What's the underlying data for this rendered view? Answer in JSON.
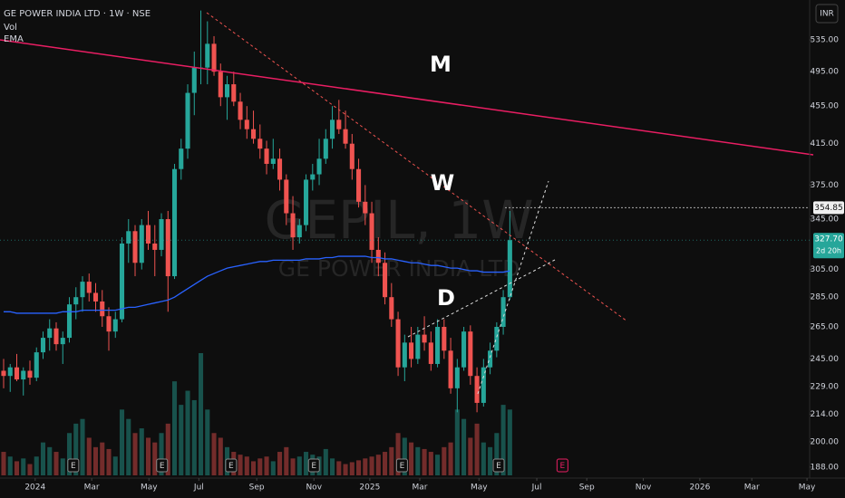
{
  "chart_data": {
    "type": "candlestick",
    "title": "GE POWER INDIA LTD · 1W · NSE",
    "currency": "INR",
    "watermark": "GEPIL, 1W",
    "watermark_subtitle": "GE POWER INDIA LTD",
    "log_scale": true,
    "grid": false,
    "xlim": [
      -0.55,
      122.6
    ],
    "ylim": [
      183,
      590
    ],
    "yticks": [
      {
        "value": 535,
        "label": "535.00"
      },
      {
        "value": 495,
        "label": "495.00"
      },
      {
        "value": 455,
        "label": "455.00"
      },
      {
        "value": 415,
        "label": "415.00"
      },
      {
        "value": 375,
        "label": "375.00"
      },
      {
        "value": 345,
        "label": "345.00"
      },
      {
        "value": 305,
        "label": "305.00"
      },
      {
        "value": 285,
        "label": "285.00"
      },
      {
        "value": 265,
        "label": "265.00"
      },
      {
        "value": 245,
        "label": "245.00"
      },
      {
        "value": 229,
        "label": "229.00"
      },
      {
        "value": 214,
        "label": "214.00"
      },
      {
        "value": 200,
        "label": "200.00"
      },
      {
        "value": 188,
        "label": "188.00"
      }
    ],
    "xticks": [
      {
        "value": 4.8,
        "label": "2024"
      },
      {
        "value": 13.4,
        "label": "Mar"
      },
      {
        "value": 22.1,
        "label": "May"
      },
      {
        "value": 29.7,
        "label": "Jul"
      },
      {
        "value": 38.5,
        "label": "Sep"
      },
      {
        "value": 47.2,
        "label": "Nov"
      },
      {
        "value": 55.7,
        "label": "2025"
      },
      {
        "value": 63.3,
        "label": "Mar"
      },
      {
        "value": 72.3,
        "label": "May"
      },
      {
        "value": 81.1,
        "label": "Jul"
      },
      {
        "value": 88.7,
        "label": "Sep"
      },
      {
        "value": 97.3,
        "label": "Nov"
      },
      {
        "value": 105.9,
        "label": "2026"
      },
      {
        "value": 113.8,
        "label": "Mar"
      },
      {
        "value": 122.2,
        "label": "May"
      }
    ],
    "up_color": "#26a69a",
    "down_color": "#ef5350",
    "open": [
      238,
      235,
      240,
      233,
      238,
      234,
      249,
      258,
      264,
      254,
      258,
      280,
      285,
      296,
      288,
      282,
      272,
      262,
      270,
      325,
      335,
      310,
      340,
      325,
      320,
      345,
      300,
      390,
      410,
      470,
      500,
      500,
      530,
      495,
      465,
      480,
      460,
      440,
      430,
      420,
      410,
      395,
      400,
      380,
      350,
      330,
      340,
      380,
      385,
      400,
      420,
      440,
      430,
      415,
      390,
      360,
      350,
      320,
      310,
      285,
      270,
      240,
      255,
      245,
      260,
      255,
      242,
      265,
      250,
      228,
      240,
      262,
      235,
      220,
      240,
      250,
      265,
      285
    ],
    "high": [
      245,
      242,
      248,
      240,
      244,
      252,
      262,
      270,
      268,
      262,
      285,
      292,
      300,
      302,
      295,
      290,
      278,
      275,
      330,
      345,
      340,
      345,
      352,
      340,
      350,
      352,
      395,
      420,
      480,
      520,
      575,
      560,
      540,
      505,
      490,
      495,
      470,
      455,
      450,
      435,
      418,
      420,
      410,
      385,
      365,
      345,
      385,
      395,
      420,
      430,
      455,
      462,
      450,
      425,
      400,
      375,
      360,
      330,
      318,
      295,
      275,
      260,
      265,
      265,
      272,
      262,
      270,
      270,
      258,
      245,
      265,
      266,
      240,
      245,
      255,
      268,
      290,
      352
    ],
    "low": [
      228,
      226,
      232,
      224,
      230,
      232,
      245,
      250,
      250,
      242,
      255,
      270,
      275,
      282,
      275,
      265,
      250,
      258,
      268,
      310,
      300,
      305,
      320,
      300,
      315,
      275,
      298,
      380,
      400,
      445,
      480,
      480,
      490,
      455,
      440,
      455,
      430,
      420,
      415,
      400,
      385,
      390,
      370,
      340,
      320,
      325,
      335,
      370,
      375,
      395,
      410,
      425,
      410,
      380,
      355,
      340,
      310,
      300,
      280,
      265,
      235,
      232,
      240,
      242,
      250,
      238,
      240,
      245,
      225,
      215,
      238,
      230,
      215,
      218,
      236,
      246,
      260,
      283
    ],
    "close": [
      235,
      240,
      233,
      238,
      234,
      249,
      258,
      264,
      254,
      258,
      280,
      285,
      296,
      288,
      282,
      272,
      262,
      270,
      325,
      335,
      310,
      340,
      325,
      320,
      345,
      300,
      390,
      410,
      470,
      500,
      500,
      530,
      495,
      465,
      480,
      460,
      440,
      430,
      420,
      410,
      395,
      400,
      380,
      350,
      330,
      340,
      380,
      385,
      400,
      420,
      440,
      430,
      415,
      390,
      360,
      350,
      320,
      310,
      285,
      270,
      240,
      255,
      245,
      260,
      255,
      242,
      265,
      250,
      228,
      240,
      262,
      235,
      220,
      240,
      250,
      265,
      285,
      327.7
    ],
    "volume": {
      "name": "Vol",
      "values": [
        25,
        20,
        15,
        18,
        12,
        20,
        35,
        30,
        25,
        18,
        45,
        55,
        60,
        40,
        30,
        35,
        28,
        20,
        70,
        60,
        45,
        50,
        40,
        35,
        45,
        55,
        100,
        75,
        90,
        80,
        130,
        70,
        45,
        40,
        30,
        25,
        22,
        20,
        15,
        18,
        20,
        15,
        25,
        30,
        18,
        20,
        25,
        22,
        20,
        28,
        18,
        15,
        12,
        14,
        16,
        18,
        20,
        22,
        25,
        30,
        45,
        40,
        35,
        30,
        28,
        25,
        22,
        30,
        35,
        70,
        60,
        40,
        55,
        35,
        30,
        45,
        75,
        70
      ]
    },
    "ema": {
      "name": "EMA",
      "color": "#2962ff",
      "values": [
        275,
        275,
        274,
        274,
        274,
        274,
        274,
        274,
        274,
        275,
        275,
        275,
        276,
        276,
        276,
        276,
        276,
        276,
        277,
        278,
        278,
        279,
        280,
        281,
        282,
        283,
        285,
        288,
        291,
        294,
        297,
        300,
        302,
        304,
        306,
        307,
        308,
        309,
        310,
        311,
        311,
        312,
        312,
        312,
        312,
        312,
        313,
        313,
        313,
        314,
        314,
        315,
        315,
        315,
        315,
        315,
        314,
        314,
        313,
        313,
        312,
        311,
        310,
        310,
        309,
        308,
        308,
        307,
        306,
        306,
        305,
        304,
        304,
        303,
        303,
        303,
        303,
        304
      ]
    },
    "last_price": {
      "value": 327.7,
      "label": "327.70"
    },
    "countdown": "2d 20h",
    "level": {
      "value": 354.85,
      "label": "354.85"
    },
    "earnings": [
      {
        "x": 10.6,
        "label": "E"
      },
      {
        "x": 24.1,
        "label": "E"
      },
      {
        "x": 34.6,
        "label": "E"
      },
      {
        "x": 47.2,
        "label": "E"
      },
      {
        "x": 60.6,
        "label": "E"
      },
      {
        "x": 75.3,
        "label": "E"
      },
      {
        "x": 85,
        "label": "E"
      }
    ],
    "annotations": [
      {
        "text": "M"
      },
      {
        "text": "W"
      },
      {
        "text": "D"
      }
    ]
  }
}
